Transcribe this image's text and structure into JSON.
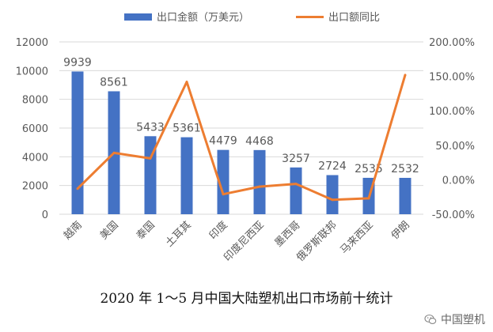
{
  "chart_data": {
    "type": "bar+line",
    "categories": [
      "越南",
      "美国",
      "泰国",
      "土耳其",
      "印度",
      "印度尼西亚",
      "墨西哥",
      "俄罗斯联邦",
      "马来西亚",
      "伊朗"
    ],
    "series": [
      {
        "name": "出口金额（万美元）",
        "type": "bar",
        "axis": "left",
        "values": [
          9939,
          8561,
          5433,
          5361,
          4479,
          4468,
          3257,
          2724,
          2535,
          2532
        ]
      },
      {
        "name": "出口额同比",
        "type": "line",
        "axis": "right",
        "values": [
          -13,
          39,
          31,
          142,
          -21,
          -10,
          -6,
          -29,
          -27,
          152
        ]
      }
    ],
    "bar_labels": [
      "9939",
      "8561",
      "5433",
      "5361",
      "4479",
      "4468",
      "3257",
      "2724",
      "2535",
      "2532"
    ],
    "y_left": {
      "lim": [
        0,
        12000
      ],
      "ticks": [
        "0",
        "2000",
        "4000",
        "6000",
        "8000",
        "10000",
        "12000"
      ]
    },
    "y_right": {
      "lim": [
        -50,
        200
      ],
      "ticks": [
        "-50.00%",
        "0.00%",
        "50.00%",
        "100.00%",
        "150.00%",
        "200.00%"
      ]
    },
    "grid": true,
    "legend_position": "top",
    "colors": {
      "bar": "#4472C4",
      "line": "#ED7D31",
      "grid": "#d9d9d9",
      "text": "#595959"
    }
  },
  "caption": "2020 年 1～5 月中国大陆塑机出口市场前十统计",
  "watermark": {
    "text": "中国塑机",
    "icon": "wechat-icon"
  }
}
